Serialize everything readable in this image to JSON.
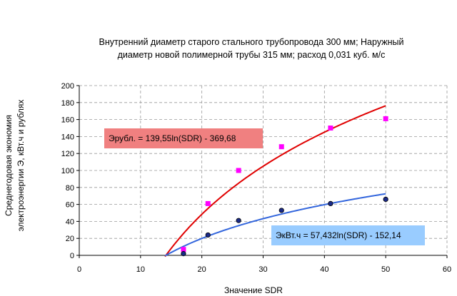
{
  "chart_data": {
    "type": "scatter",
    "title": [
      "Внутренний диаметр старого стального трубопровода 300 мм;   Наружный",
      "диаметр новой полимерной трубы 315 мм; расход 0,031 куб. м/с"
    ],
    "xlabel": "Значение SDR",
    "ylabel": [
      "Среднегодовая экономия",
      "электроэнергии Э, кВт.ч и рублях"
    ],
    "xlim": [
      0,
      60
    ],
    "ylim": [
      0,
      200
    ],
    "x_ticks": [
      0,
      10,
      20,
      30,
      40,
      50,
      60
    ],
    "y_ticks": [
      0,
      20,
      40,
      60,
      80,
      100,
      120,
      140,
      160,
      180,
      200
    ],
    "grid": true,
    "series": [
      {
        "marker": "square",
        "color": "#ff00ff",
        "x": [
          17,
          21,
          26,
          33,
          41,
          50
        ],
        "y": [
          7,
          61,
          100,
          128,
          150,
          161
        ]
      },
      {
        "marker": "circle",
        "color": "#1a2a88",
        "x": [
          17,
          21,
          26,
          33,
          41,
          50
        ],
        "y": [
          2,
          24,
          41,
          53,
          61,
          66
        ]
      }
    ],
    "trendlines": [
      {
        "color": "#e00000",
        "coef_a": 139.55,
        "coef_b": -369.68,
        "x_range": [
          14,
          50
        ],
        "label": "Эрубл. = 139,55ln(SDR) - 369,68",
        "label_bg": "#f08080"
      },
      {
        "color": "#3366dd",
        "coef_a": 57.432,
        "coef_b": -152.14,
        "x_range": [
          14,
          50
        ],
        "label": "ЭкВт.ч = 57,432ln(SDR) - 152,14",
        "label_bg": "#99ccff"
      }
    ]
  }
}
